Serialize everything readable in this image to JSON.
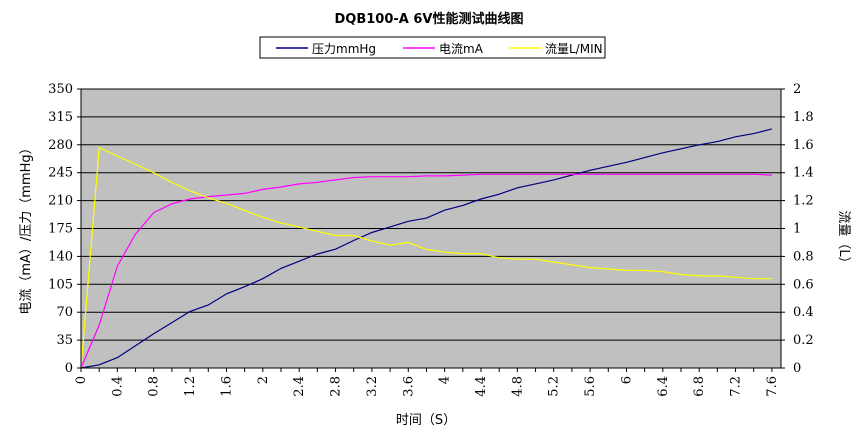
{
  "chart_data": {
    "type": "line",
    "title": "DQB100-A 6V性能测试曲线图",
    "xlabel": "时间（S）",
    "ylabel": "电流（mA）/压力（mmHg）",
    "y2label": "流量（L）",
    "ylim": [
      0,
      350
    ],
    "y2lim": [
      0,
      2
    ],
    "y_ticks": [
      "0",
      "35",
      "70",
      "105",
      "140",
      "175",
      "210",
      "245",
      "280",
      "315",
      "350"
    ],
    "y2_ticks": [
      "0",
      "0.2",
      "0.4",
      "0.6",
      "0.8",
      "1",
      "1.2",
      "1.4",
      "1.6",
      "1.8",
      "2"
    ],
    "x_tick_labels": [
      "0",
      "0.4",
      "0.8",
      "1.2",
      "1.6",
      "2",
      "2.4",
      "2.8",
      "3.2",
      "3.6",
      "4",
      "4.4",
      "4.8",
      "5.2",
      "5.6",
      "6",
      "6.4",
      "6.8",
      "7.2",
      "7.6"
    ],
    "x": [
      0,
      0.2,
      0.4,
      0.6,
      0.8,
      1.0,
      1.2,
      1.4,
      1.6,
      1.8,
      2.0,
      2.2,
      2.4,
      2.6,
      2.8,
      3.0,
      3.2,
      3.4,
      3.6,
      3.8,
      4.0,
      4.2,
      4.4,
      4.6,
      4.8,
      5.0,
      5.2,
      5.4,
      5.6,
      5.8,
      6.0,
      6.2,
      6.4,
      6.6,
      6.8,
      7.0,
      7.2,
      7.4,
      7.6
    ],
    "grid": true,
    "legend_position": "top-center",
    "background": "#c0c0c0",
    "series": [
      {
        "name": "压力mmHg",
        "axis": "left",
        "color": "#000080",
        "values": [
          0,
          4,
          13,
          28,
          43,
          57,
          71,
          79,
          93,
          102,
          112,
          125,
          134,
          143,
          149,
          160,
          170,
          177,
          184,
          188,
          198,
          204,
          212,
          218,
          226,
          231,
          236,
          242,
          248,
          253,
          258,
          264,
          270,
          275,
          280,
          284,
          290,
          294,
          300
        ]
      },
      {
        "name": "电流mA",
        "axis": "left",
        "color": "#ff00ff",
        "values": [
          0,
          54,
          128,
          168,
          195,
          206,
          212,
          215,
          217,
          219,
          224,
          227,
          231,
          233,
          236,
          239,
          240,
          240,
          240,
          241,
          241,
          242,
          243,
          243,
          243,
          243,
          243,
          243,
          243,
          243,
          243,
          243,
          243,
          243,
          243,
          243,
          243,
          243,
          242
        ]
      },
      {
        "name": "流量L/MIN",
        "axis": "right",
        "color": "#ffff00",
        "values": [
          0,
          1.58,
          1.52,
          1.46,
          1.4,
          1.33,
          1.27,
          1.22,
          1.18,
          1.13,
          1.08,
          1.04,
          1.01,
          0.98,
          0.95,
          0.95,
          0.91,
          0.88,
          0.9,
          0.85,
          0.83,
          0.82,
          0.82,
          0.79,
          0.78,
          0.78,
          0.76,
          0.74,
          0.72,
          0.71,
          0.7,
          0.7,
          0.69,
          0.67,
          0.66,
          0.66,
          0.65,
          0.64,
          0.64
        ]
      }
    ]
  }
}
